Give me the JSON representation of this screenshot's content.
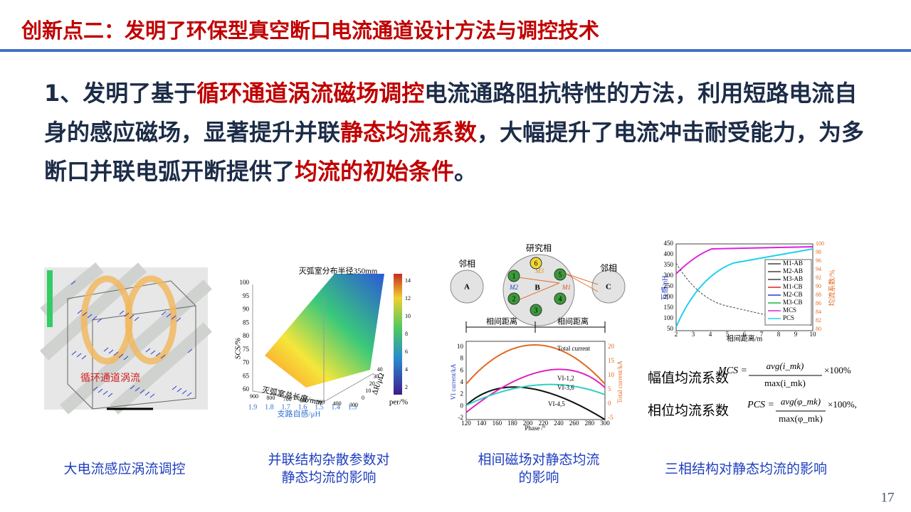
{
  "header": {
    "title": "创新点二：发明了环保型真空断口电流通道设计方法与调控技术"
  },
  "body": {
    "segments": [
      {
        "text": "1、发明了基于",
        "highlight": false
      },
      {
        "text": "循环通道涡流磁场调控",
        "highlight": true
      },
      {
        "text": "电流通路阻抗特性的方法，利用短路电流自身的感应磁场，显著提升并联",
        "highlight": false
      },
      {
        "text": "静态均流系数",
        "highlight": true
      },
      {
        "text": "，大幅提升了电流冲击耐受能力，为多断口并联电弧开断提供了",
        "highlight": false
      },
      {
        "text": "均流的初始条件",
        "highlight": true
      },
      {
        "text": "。",
        "highlight": false
      }
    ]
  },
  "figures": [
    {
      "caption": [
        "大电流感应涡流调控"
      ],
      "labels": {
        "eddy": "循环通道涡流"
      }
    },
    {
      "caption": [
        "并联结构杂散参数对",
        "静态均流的影响"
      ],
      "labels": {
        "title": "灭弧室分布半径350mm",
        "z_axis": "SCS/%",
        "x_axis": "灭弧室总长度/mm",
        "x2_axis": "支路自感/μH",
        "y_axis": "ΔR/μΩ",
        "colorbar": "per/%"
      },
      "zticks": [
        "60",
        "65",
        "70",
        "75",
        "80",
        "85",
        "90",
        "95",
        "100"
      ],
      "xticks": [
        "900",
        "800",
        "700",
        "600",
        "500",
        "400",
        "300"
      ],
      "x2ticks": [
        "1.9",
        "1.8",
        "1.7",
        "1.6",
        "1.5",
        "1.4",
        "1.3"
      ],
      "yticks": [
        "0",
        "10",
        "20",
        "30",
        "40"
      ],
      "cticks": [
        "2",
        "4",
        "6",
        "8",
        "10",
        "12",
        "14"
      ]
    },
    {
      "caption": [
        "相间磁场对静态均流",
        "的影响"
      ],
      "labels": {
        "study": "研究相",
        "neighbor_left": "邻相",
        "neighbor_right": "邻相",
        "a": "A",
        "b": "B",
        "c": "C",
        "dist_left": "相间距离",
        "dist_right": "相间距离",
        "m1": "M1",
        "m2": "M2",
        "m3": "M3",
        "total": "Total current",
        "vi12": "VI-1,2",
        "vi36": "VI-3,6",
        "vi45": "VI-4,5",
        "y_axis": "VI current/kA",
        "y2_axis": "Total current/kA",
        "x_axis": "Phase /°"
      },
      "nodes": [
        "6",
        "1",
        "5",
        "2",
        "3",
        "4"
      ],
      "xticks": [
        "120",
        "140",
        "160",
        "180",
        "200",
        "220",
        "240",
        "260",
        "280",
        "300"
      ],
      "yticks": [
        "-2",
        "0",
        "2",
        "4",
        "6",
        "8",
        "10"
      ],
      "y2ticks": [
        "-5",
        "0",
        "5",
        "10",
        "15",
        "20"
      ]
    },
    {
      "caption": [
        "三相结构对静态均流的影响"
      ],
      "legend": [
        "M1-AB",
        "M2-AB",
        "M3-AB",
        "M1-CB",
        "M2-CB",
        "M3-CB",
        "MCS",
        "PCS"
      ],
      "labels": {
        "y_axis": "互感/nH",
        "y2_axis": "均流系数/%",
        "x_axis": "相间距离/m",
        "mcs_name": "幅值均流系数",
        "pcs_name": "相位均流系数",
        "mcs_lhs": "MCS =",
        "mcs_num": "avg(i_mk)",
        "mcs_den": "max(i_mk)",
        "mcs_tail": "×100%",
        "pcs_lhs": "PCS =",
        "pcs_num": "avg(φ_mk)",
        "pcs_den": "max(φ_mk)",
        "pcs_tail": "×100%,"
      },
      "xticks": [
        "2",
        "3",
        "4",
        "5",
        "6",
        "7",
        "8",
        "9",
        "10"
      ],
      "yticks": [
        "50",
        "100",
        "150",
        "200",
        "250",
        "300",
        "350",
        "400",
        "450"
      ],
      "y2ticks": [
        "80",
        "82",
        "84",
        "86",
        "88",
        "90",
        "92",
        "94",
        "96",
        "98",
        "100"
      ]
    }
  ],
  "page_number": "17"
}
